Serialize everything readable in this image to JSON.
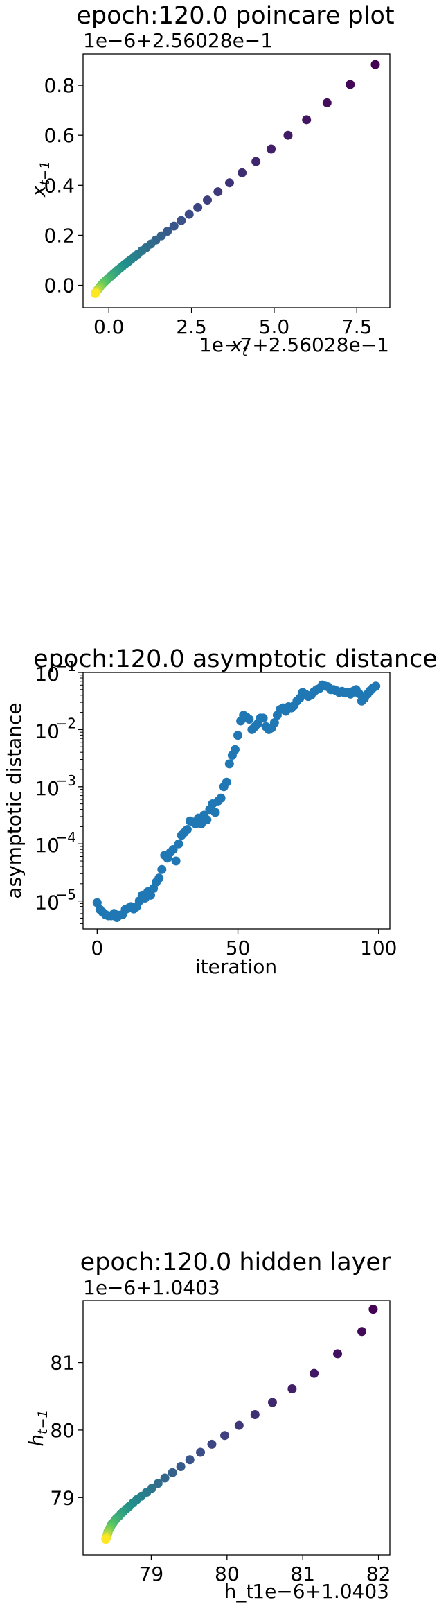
{
  "chart_data": [
    {
      "type": "scatter",
      "title": "epoch:120.0 poincare plot",
      "xlabel_main": "x",
      "xlabel_sub": "t",
      "ylabel_main": "x",
      "ylabel_sub": "t−1",
      "x_offset_text": "1e−7+2.56028e−1",
      "y_offset_text": "1e−6+2.56028e−1",
      "xlim": [
        -0.78,
        8.5
      ],
      "ylim": [
        -0.09,
        0.925
      ],
      "xticks": [
        0.0,
        2.5,
        5.0,
        7.5
      ],
      "xtick_labels": [
        "0.0",
        "2.5",
        "5.0",
        "7.5"
      ],
      "yticks": [
        0.0,
        0.2,
        0.4,
        0.6,
        0.8
      ],
      "ytick_labels": [
        "0.0",
        "0.2",
        "0.4",
        "0.6",
        "0.8"
      ],
      "colormap": "viridis",
      "points": [
        [
          8.06,
          0.883
        ],
        [
          7.3,
          0.803
        ],
        [
          6.6,
          0.73
        ],
        [
          5.98,
          0.662
        ],
        [
          5.42,
          0.6
        ],
        [
          4.91,
          0.545
        ],
        [
          4.45,
          0.495
        ],
        [
          4.03,
          0.45
        ],
        [
          3.65,
          0.41
        ],
        [
          3.3,
          0.374
        ],
        [
          2.98,
          0.341
        ],
        [
          2.69,
          0.311
        ],
        [
          2.43,
          0.284
        ],
        [
          2.19,
          0.259
        ],
        [
          1.97,
          0.237
        ],
        [
          1.77,
          0.216
        ],
        [
          1.59,
          0.198
        ],
        [
          1.42,
          0.181
        ],
        [
          1.27,
          0.165
        ],
        [
          1.13,
          0.151
        ],
        [
          1.0,
          0.138
        ],
        [
          0.88,
          0.125
        ],
        [
          0.77,
          0.114
        ],
        [
          0.67,
          0.103
        ],
        [
          0.58,
          0.094
        ],
        [
          0.49,
          0.085
        ],
        [
          0.41,
          0.076
        ],
        [
          0.34,
          0.068
        ],
        [
          0.27,
          0.061
        ],
        [
          0.21,
          0.054
        ],
        [
          0.15,
          0.047
        ],
        [
          0.1,
          0.041
        ],
        [
          0.05,
          0.035
        ],
        [
          0.0,
          0.03
        ],
        [
          -0.04,
          0.025
        ],
        [
          -0.08,
          0.02
        ],
        [
          -0.12,
          0.015
        ],
        [
          -0.15,
          0.011
        ],
        [
          -0.18,
          0.007
        ],
        [
          -0.21,
          0.003
        ],
        [
          -0.24,
          -0.001
        ],
        [
          -0.26,
          -0.005
        ],
        [
          -0.28,
          -0.009
        ],
        [
          -0.3,
          -0.012
        ],
        [
          -0.32,
          -0.015
        ],
        [
          -0.34,
          -0.018
        ],
        [
          -0.36,
          -0.021
        ],
        [
          -0.37,
          -0.024
        ],
        [
          -0.38,
          -0.026
        ],
        [
          -0.39,
          -0.028
        ],
        [
          -0.4,
          -0.03
        ],
        [
          -0.41,
          -0.032
        ],
        [
          -0.41,
          -0.033
        ]
      ]
    },
    {
      "type": "scatter",
      "title": "epoch:120.0 asymptotic distance",
      "xlabel": "iteration",
      "ylabel": "asymptotic distance",
      "yscale": "log",
      "color": "#1f77b4",
      "xlim": [
        -5,
        104
      ],
      "ylim_log10": [
        -5.49,
        -1.0
      ],
      "xticks": [
        0,
        50,
        100
      ],
      "xtick_labels": [
        "0",
        "50",
        "100"
      ],
      "ytick_exponents": [
        -5,
        -4,
        -3,
        -2,
        -1
      ],
      "ytick_base": "10",
      "y_log10_values": [
        -5.03,
        -5.15,
        -5.2,
        -5.24,
        -5.26,
        -5.26,
        -5.22,
        -5.29,
        -5.25,
        -5.24,
        -5.15,
        -5.13,
        -5.1,
        -5.14,
        -5.1,
        -5.0,
        -4.9,
        -4.95,
        -4.84,
        -4.9,
        -4.78,
        -4.67,
        -4.6,
        -4.45,
        -4.2,
        -4.25,
        -4.15,
        -4.1,
        -4.3,
        -4.0,
        -3.85,
        -3.8,
        -3.75,
        -3.6,
        -3.62,
        -3.65,
        -3.55,
        -3.65,
        -3.5,
        -3.58,
        -3.4,
        -3.3,
        -3.45,
        -3.25,
        -3.2,
        -3.0,
        -2.92,
        -2.6,
        -2.45,
        -2.35,
        -2.1,
        -1.85,
        -1.75,
        -1.78,
        -1.82,
        -2.0,
        -1.95,
        -1.9,
        -1.8,
        -1.8,
        -1.95,
        -2.0,
        -1.97,
        -1.88,
        -1.75,
        -1.65,
        -1.62,
        -1.68,
        -1.6,
        -1.62,
        -1.58,
        -1.5,
        -1.45,
        -1.35,
        -1.38,
        -1.42,
        -1.4,
        -1.34,
        -1.3,
        -1.28,
        -1.22,
        -1.24,
        -1.25,
        -1.3,
        -1.3,
        -1.32,
        -1.35,
        -1.33,
        -1.36,
        -1.35,
        -1.38,
        -1.33,
        -1.3,
        -1.37,
        -1.5,
        -1.45,
        -1.38,
        -1.32,
        -1.27,
        -1.24
      ]
    },
    {
      "type": "scatter",
      "title": "epoch:120.0 hidden layer",
      "xlabel_main": "h_t",
      "ylabel_main": "h",
      "ylabel_sub": "t−1",
      "x_offset_text": "1e−6+1.0403",
      "y_offset_text": "1e−6+1.0403",
      "xlim": [
        78.1,
        82.15
      ],
      "ylim": [
        78.15,
        81.92
      ],
      "xticks": [
        79,
        80,
        81,
        82
      ],
      "xtick_labels": [
        "79",
        "80",
        "81",
        "82"
      ],
      "yticks": [
        79,
        80,
        81
      ],
      "ytick_labels": [
        "79",
        "80",
        "81"
      ],
      "colormap": "viridis",
      "points": [
        [
          81.93,
          81.79
        ],
        [
          81.78,
          81.46
        ],
        [
          81.46,
          81.13
        ],
        [
          81.15,
          80.84
        ],
        [
          80.86,
          80.61
        ],
        [
          80.6,
          80.41
        ],
        [
          80.37,
          80.23
        ],
        [
          80.16,
          80.07
        ],
        [
          79.97,
          79.92
        ],
        [
          79.8,
          79.79
        ],
        [
          79.65,
          79.67
        ],
        [
          79.51,
          79.56
        ],
        [
          79.39,
          79.46
        ],
        [
          79.28,
          79.37
        ],
        [
          79.18,
          79.29
        ],
        [
          79.09,
          79.21
        ],
        [
          79.01,
          79.14
        ],
        [
          78.94,
          79.08
        ],
        [
          78.87,
          79.02
        ],
        [
          78.81,
          78.97
        ],
        [
          78.76,
          78.92
        ],
        [
          78.71,
          78.87
        ],
        [
          78.67,
          78.83
        ],
        [
          78.63,
          78.79
        ],
        [
          78.6,
          78.76
        ],
        [
          78.57,
          78.72
        ],
        [
          78.54,
          78.69
        ],
        [
          78.52,
          78.66
        ],
        [
          78.5,
          78.63
        ],
        [
          78.48,
          78.61
        ],
        [
          78.47,
          78.58
        ],
        [
          78.46,
          78.56
        ],
        [
          78.45,
          78.54
        ],
        [
          78.44,
          78.52
        ],
        [
          78.43,
          78.5
        ],
        [
          78.43,
          78.48
        ],
        [
          78.42,
          78.46
        ],
        [
          78.42,
          78.44
        ],
        [
          78.41,
          78.42
        ],
        [
          78.41,
          78.41
        ],
        [
          78.41,
          78.4
        ],
        [
          78.4,
          78.39
        ],
        [
          78.4,
          78.38
        ]
      ]
    }
  ]
}
